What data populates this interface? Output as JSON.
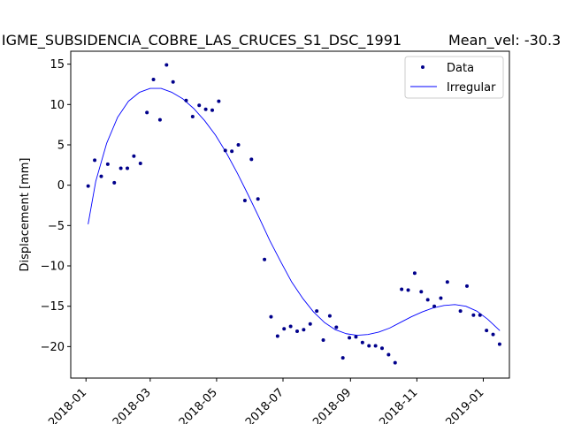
{
  "chart_data": {
    "type": "scatter",
    "title": "IGME_SUBSIDENCIA_COBRE_LAS_CRUCES_S1_DSC_1991",
    "mean_vel_label": "Mean_vel: -30.3",
    "xlabel": "",
    "ylabel": "Displacement [mm]",
    "xlim": [
      "2017-12-18",
      "2019-01-25"
    ],
    "ylim": [
      -23.9,
      16.6
    ],
    "xticks": [
      "2018-01",
      "2018-03",
      "2018-05",
      "2018-07",
      "2018-09",
      "2018-11",
      "2019-01"
    ],
    "yticks": [
      15,
      10,
      5,
      0,
      -5,
      -10,
      -15,
      -20
    ],
    "ytick_labels": [
      "15",
      "10",
      "5",
      "0",
      "−5",
      "−10",
      "−15",
      "−20"
    ],
    "grid": false,
    "legend_position": "top-right",
    "series": [
      {
        "name": "Data",
        "kind": "points",
        "color": "#00008b",
        "points": [
          {
            "x": "2018-01-03",
            "y": -0.1
          },
          {
            "x": "2018-01-09",
            "y": 3.1
          },
          {
            "x": "2018-01-15",
            "y": 1.1
          },
          {
            "x": "2018-01-21",
            "y": 2.6
          },
          {
            "x": "2018-01-27",
            "y": 0.3
          },
          {
            "x": "2018-02-02",
            "y": 2.1
          },
          {
            "x": "2018-02-08",
            "y": 2.1
          },
          {
            "x": "2018-02-14",
            "y": 3.6
          },
          {
            "x": "2018-02-20",
            "y": 2.7
          },
          {
            "x": "2018-02-26",
            "y": 9.0
          },
          {
            "x": "2018-03-04",
            "y": 13.1
          },
          {
            "x": "2018-03-10",
            "y": 8.1
          },
          {
            "x": "2018-03-16",
            "y": 14.9
          },
          {
            "x": "2018-03-22",
            "y": 12.8
          },
          {
            "x": "2018-04-03",
            "y": 10.5
          },
          {
            "x": "2018-04-09",
            "y": 8.5
          },
          {
            "x": "2018-04-15",
            "y": 9.9
          },
          {
            "x": "2018-04-21",
            "y": 9.4
          },
          {
            "x": "2018-04-27",
            "y": 9.3
          },
          {
            "x": "2018-05-03",
            "y": 10.4
          },
          {
            "x": "2018-05-09",
            "y": 4.3
          },
          {
            "x": "2018-05-15",
            "y": 4.2
          },
          {
            "x": "2018-05-21",
            "y": 5.0
          },
          {
            "x": "2018-05-27",
            "y": -1.9
          },
          {
            "x": "2018-06-02",
            "y": 3.2
          },
          {
            "x": "2018-06-08",
            "y": -1.7
          },
          {
            "x": "2018-06-14",
            "y": -9.2
          },
          {
            "x": "2018-06-20",
            "y": -16.3
          },
          {
            "x": "2018-06-26",
            "y": -18.7
          },
          {
            "x": "2018-07-02",
            "y": -17.8
          },
          {
            "x": "2018-07-08",
            "y": -17.5
          },
          {
            "x": "2018-07-14",
            "y": -18.1
          },
          {
            "x": "2018-07-20",
            "y": -17.9
          },
          {
            "x": "2018-07-26",
            "y": -17.2
          },
          {
            "x": "2018-08-01",
            "y": -15.6
          },
          {
            "x": "2018-08-07",
            "y": -19.2
          },
          {
            "x": "2018-08-13",
            "y": -16.2
          },
          {
            "x": "2018-08-19",
            "y": -17.6
          },
          {
            "x": "2018-08-25",
            "y": -21.4
          },
          {
            "x": "2018-08-31",
            "y": -18.9
          },
          {
            "x": "2018-09-06",
            "y": -18.8
          },
          {
            "x": "2018-09-12",
            "y": -19.5
          },
          {
            "x": "2018-09-18",
            "y": -19.9
          },
          {
            "x": "2018-09-24",
            "y": -19.9
          },
          {
            "x": "2018-09-30",
            "y": -20.2
          },
          {
            "x": "2018-10-06",
            "y": -21.0
          },
          {
            "x": "2018-10-12",
            "y": -22.0
          },
          {
            "x": "2018-10-18",
            "y": -12.9
          },
          {
            "x": "2018-10-24",
            "y": -13.0
          },
          {
            "x": "2018-10-30",
            "y": -10.9
          },
          {
            "x": "2018-11-05",
            "y": -13.2
          },
          {
            "x": "2018-11-11",
            "y": -14.2
          },
          {
            "x": "2018-11-17",
            "y": -15.0
          },
          {
            "x": "2018-11-23",
            "y": -14.0
          },
          {
            "x": "2018-11-29",
            "y": -12.0
          },
          {
            "x": "2018-12-11",
            "y": -15.6
          },
          {
            "x": "2018-12-17",
            "y": -12.5
          },
          {
            "x": "2018-12-23",
            "y": -16.1
          },
          {
            "x": "2018-12-29",
            "y": -16.1
          },
          {
            "x": "2019-01-04",
            "y": -18.0
          },
          {
            "x": "2019-01-10",
            "y": -18.5
          },
          {
            "x": "2019-01-16",
            "y": -19.7
          }
        ]
      },
      {
        "name": "Irregular",
        "kind": "line",
        "color": "#0000ff",
        "points": [
          {
            "x": "2018-01-03",
            "y": -4.8
          },
          {
            "x": "2018-01-10",
            "y": 0.5
          },
          {
            "x": "2018-01-20",
            "y": 5.2
          },
          {
            "x": "2018-01-30",
            "y": 8.4
          },
          {
            "x": "2018-02-09",
            "y": 10.4
          },
          {
            "x": "2018-02-19",
            "y": 11.5
          },
          {
            "x": "2018-03-01",
            "y": 12.0
          },
          {
            "x": "2018-03-11",
            "y": 12.0
          },
          {
            "x": "2018-03-21",
            "y": 11.5
          },
          {
            "x": "2018-03-31",
            "y": 10.7
          },
          {
            "x": "2018-04-10",
            "y": 9.5
          },
          {
            "x": "2018-04-20",
            "y": 8.0
          },
          {
            "x": "2018-04-30",
            "y": 6.2
          },
          {
            "x": "2018-05-10",
            "y": 4.0
          },
          {
            "x": "2018-05-20",
            "y": 1.5
          },
          {
            "x": "2018-05-30",
            "y": -1.2
          },
          {
            "x": "2018-06-09",
            "y": -4.0
          },
          {
            "x": "2018-06-19",
            "y": -6.9
          },
          {
            "x": "2018-06-29",
            "y": -9.5
          },
          {
            "x": "2018-07-09",
            "y": -12.0
          },
          {
            "x": "2018-07-19",
            "y": -14.0
          },
          {
            "x": "2018-07-29",
            "y": -15.7
          },
          {
            "x": "2018-08-08",
            "y": -17.0
          },
          {
            "x": "2018-08-18",
            "y": -17.9
          },
          {
            "x": "2018-08-28",
            "y": -18.4
          },
          {
            "x": "2018-09-07",
            "y": -18.6
          },
          {
            "x": "2018-09-17",
            "y": -18.5
          },
          {
            "x": "2018-09-27",
            "y": -18.2
          },
          {
            "x": "2018-10-07",
            "y": -17.7
          },
          {
            "x": "2018-10-17",
            "y": -17.0
          },
          {
            "x": "2018-10-27",
            "y": -16.3
          },
          {
            "x": "2018-11-06",
            "y": -15.7
          },
          {
            "x": "2018-11-16",
            "y": -15.2
          },
          {
            "x": "2018-11-26",
            "y": -14.9
          },
          {
            "x": "2018-12-06",
            "y": -14.8
          },
          {
            "x": "2018-12-16",
            "y": -15.0
          },
          {
            "x": "2018-12-26",
            "y": -15.6
          },
          {
            "x": "2019-01-05",
            "y": -16.6
          },
          {
            "x": "2019-01-16",
            "y": -18.0
          }
        ]
      }
    ]
  }
}
